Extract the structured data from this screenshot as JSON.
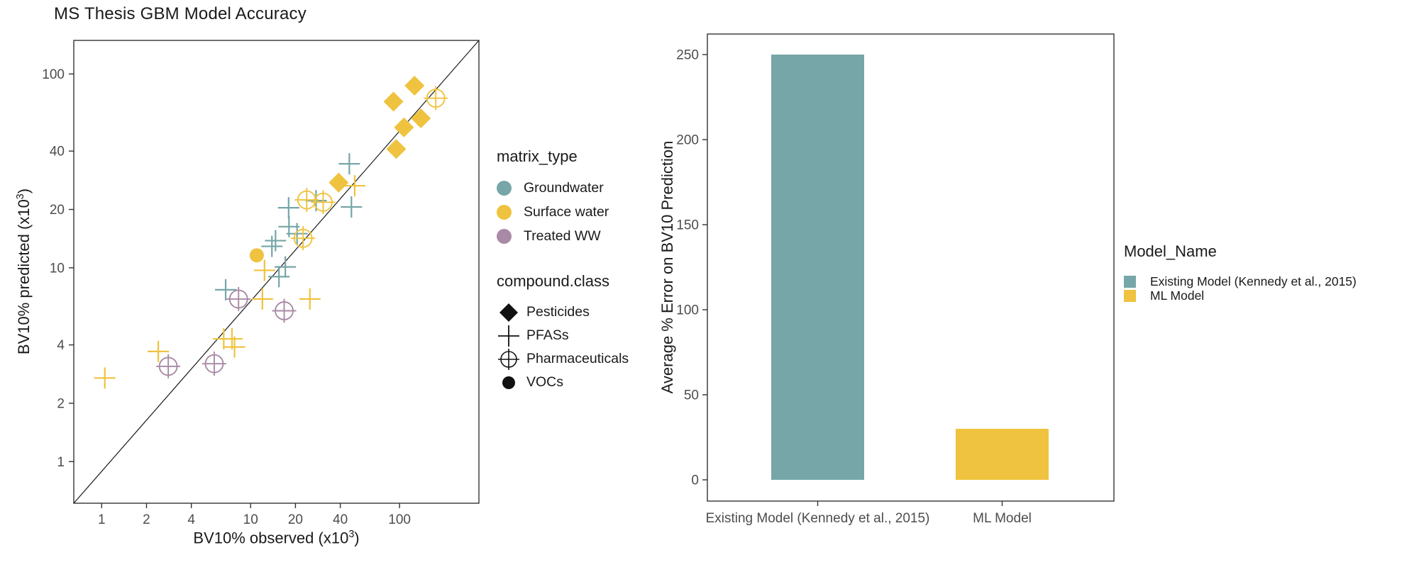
{
  "colors": {
    "teal": "#76A6A8",
    "yellow": "#EFC33F",
    "purple": "#A98AA6",
    "black": "#111111",
    "tick_text": "#4D4D4D",
    "panel_border": "#333333",
    "identity_line": "#1a1a1a"
  },
  "chart_data": [
    {
      "type": "scatter",
      "title": "MS Thesis GBM Model Accuracy",
      "xlabel_parts": {
        "pre": "BV10% observed (x10",
        "sup": "3",
        "post": ")"
      },
      "ylabel_parts": {
        "pre": "BV10% predicted (x10",
        "sup": "3",
        "post": ")"
      },
      "x_scale": "log10",
      "y_scale": "log10",
      "x_ticks": [
        1,
        2,
        4,
        10,
        20,
        40,
        100
      ],
      "y_ticks": [
        1,
        2,
        4,
        10,
        20,
        40,
        100
      ],
      "xlim": [
        0.65,
        341
      ],
      "ylim": [
        0.61,
        149
      ],
      "identity_line": true,
      "grid": false,
      "legend_matrix": {
        "title": "matrix_type",
        "items": [
          {
            "label": "Groundwater",
            "color": "teal"
          },
          {
            "label": "Surface water",
            "color": "yellow"
          },
          {
            "label": "Treated WW",
            "color": "purple"
          }
        ]
      },
      "legend_compound": {
        "title": "compound.class",
        "items": [
          {
            "label": "Pesticides",
            "shape": "diamond"
          },
          {
            "label": "PFASs",
            "shape": "plus"
          },
          {
            "label": "Pharmaceuticals",
            "shape": "circle-plus"
          },
          {
            "label": "VOCs",
            "shape": "circle"
          }
        ]
      },
      "points": [
        {
          "x": 1.05,
          "y": 2.7,
          "matrix": "Surface water",
          "class": "PFASs"
        },
        {
          "x": 2.4,
          "y": 3.7,
          "matrix": "Surface water",
          "class": "PFASs"
        },
        {
          "x": 6.6,
          "y": 4.3,
          "matrix": "Surface water",
          "class": "PFASs"
        },
        {
          "x": 7.5,
          "y": 4.3,
          "matrix": "Surface water",
          "class": "PFASs"
        },
        {
          "x": 7.8,
          "y": 3.9,
          "matrix": "Surface water",
          "class": "PFASs"
        },
        {
          "x": 12,
          "y": 6.9,
          "matrix": "Surface water",
          "class": "PFASs"
        },
        {
          "x": 25,
          "y": 6.9,
          "matrix": "Surface water",
          "class": "PFASs"
        },
        {
          "x": 12.4,
          "y": 9.7,
          "matrix": "Surface water",
          "class": "PFASs"
        },
        {
          "x": 50,
          "y": 26.5,
          "matrix": "Surface water",
          "class": "PFASs"
        },
        {
          "x": 6.8,
          "y": 7.7,
          "matrix": "Groundwater",
          "class": "PFASs"
        },
        {
          "x": 18,
          "y": 20.4,
          "matrix": "Groundwater",
          "class": "PFASs"
        },
        {
          "x": 18.1,
          "y": 16.3,
          "matrix": "Groundwater",
          "class": "PFASs"
        },
        {
          "x": 20.5,
          "y": 15,
          "matrix": "Groundwater",
          "class": "PFASs"
        },
        {
          "x": 14.7,
          "y": 13.8,
          "matrix": "Groundwater",
          "class": "PFASs"
        },
        {
          "x": 13.9,
          "y": 12.9,
          "matrix": "Groundwater",
          "class": "PFASs"
        },
        {
          "x": 17.1,
          "y": 10.1,
          "matrix": "Groundwater",
          "class": "PFASs"
        },
        {
          "x": 15.5,
          "y": 9,
          "matrix": "Groundwater",
          "class": "PFASs"
        },
        {
          "x": 27.5,
          "y": 22.2,
          "matrix": "Groundwater",
          "class": "PFASs"
        },
        {
          "x": 47.5,
          "y": 20.6,
          "matrix": "Groundwater",
          "class": "PFASs"
        },
        {
          "x": 46,
          "y": 34.4,
          "matrix": "Groundwater",
          "class": "PFASs"
        },
        {
          "x": 2.8,
          "y": 3.1,
          "matrix": "Treated WW",
          "class": "Pharmaceuticals"
        },
        {
          "x": 5.7,
          "y": 3.2,
          "matrix": "Treated WW",
          "class": "Pharmaceuticals"
        },
        {
          "x": 8.3,
          "y": 6.9,
          "matrix": "Treated WW",
          "class": "Pharmaceuticals"
        },
        {
          "x": 16.8,
          "y": 6,
          "matrix": "Treated WW",
          "class": "Pharmaceuticals"
        },
        {
          "x": 22.5,
          "y": 14.2,
          "matrix": "Surface water",
          "class": "Pharmaceuticals"
        },
        {
          "x": 23.8,
          "y": 22.4,
          "matrix": "Surface water",
          "class": "Pharmaceuticals"
        },
        {
          "x": 30.7,
          "y": 21.8,
          "matrix": "Surface water",
          "class": "Pharmaceuticals"
        },
        {
          "x": 175,
          "y": 75,
          "matrix": "Surface water",
          "class": "Pharmaceuticals"
        },
        {
          "x": 126,
          "y": 87,
          "matrix": "Surface water",
          "class": "Pesticides"
        },
        {
          "x": 91,
          "y": 72,
          "matrix": "Surface water",
          "class": "Pesticides"
        },
        {
          "x": 139,
          "y": 59,
          "matrix": "Surface water",
          "class": "Pesticides"
        },
        {
          "x": 107,
          "y": 53,
          "matrix": "Surface water",
          "class": "Pesticides"
        },
        {
          "x": 95,
          "y": 41,
          "matrix": "Surface water",
          "class": "Pesticides"
        },
        {
          "x": 39,
          "y": 27.5,
          "matrix": "Surface water",
          "class": "Pesticides"
        },
        {
          "x": 11,
          "y": 11.6,
          "matrix": "Surface water",
          "class": "VOCs"
        }
      ]
    },
    {
      "type": "bar",
      "categories": [
        "Existing Model (Kennedy et al., 2015)",
        "ML Model"
      ],
      "values": [
        250,
        30
      ],
      "bar_colors": [
        "teal",
        "yellow"
      ],
      "ylabel": "Average % Error on BV10 Prediction",
      "y_ticks": [
        0,
        50,
        100,
        150,
        200,
        250
      ],
      "ylim": [
        0,
        262
      ],
      "grid": false,
      "legend": {
        "title": "Model_Name",
        "items": [
          {
            "label": "Existing Model (Kennedy et al., 2015)",
            "color": "teal"
          },
          {
            "label": "ML Model",
            "color": "yellow"
          }
        ]
      }
    }
  ]
}
